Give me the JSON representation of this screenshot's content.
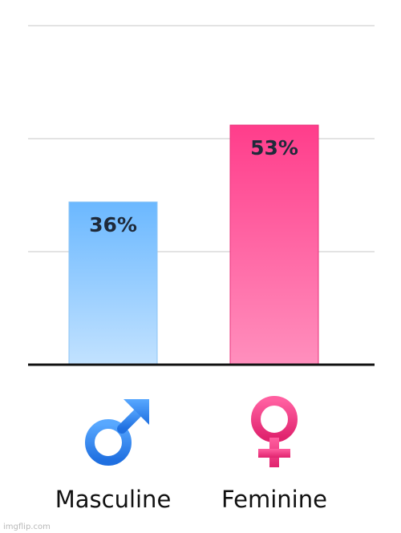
{
  "chart_data": {
    "type": "bar",
    "categories": [
      "Masculine",
      "Feminine"
    ],
    "values": [
      36,
      53
    ],
    "value_labels": [
      "36%",
      "53%"
    ],
    "ylim": [
      0,
      100
    ],
    "grid": true,
    "colors": {
      "Masculine": [
        "#6bb8ff",
        "#c2e2ff"
      ],
      "Feminine": [
        "#ff3d8b",
        "#ff8fbd"
      ]
    },
    "icons": [
      "male-symbol-icon",
      "female-symbol-icon"
    ]
  },
  "watermark": "imgflip.com"
}
